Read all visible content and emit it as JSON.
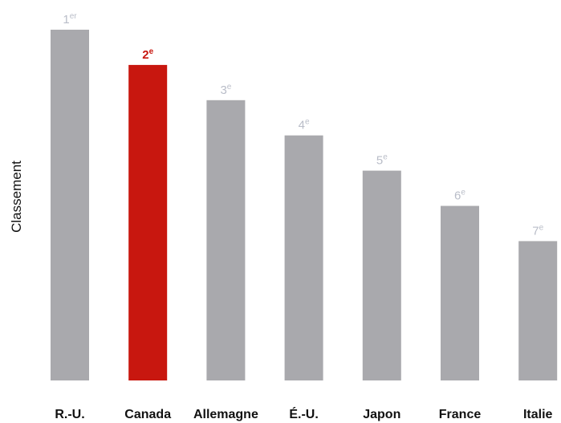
{
  "chart_data": {
    "type": "bar",
    "title": "",
    "xlabel": "",
    "ylabel": "Classement",
    "categories": [
      "R.-U.",
      "Canada",
      "Allemagne",
      "É.-U.",
      "Japon",
      "France",
      "Italie"
    ],
    "values": [
      1,
      2,
      3,
      4,
      5,
      6,
      7
    ],
    "data_labels": [
      {
        "base": "1",
        "suffix": "er"
      },
      {
        "base": "2",
        "suffix": "e"
      },
      {
        "base": "3",
        "suffix": "e"
      },
      {
        "base": "4",
        "suffix": "e"
      },
      {
        "base": "5",
        "suffix": "e"
      },
      {
        "base": "6",
        "suffix": "e"
      },
      {
        "base": "7",
        "suffix": "e"
      }
    ],
    "y_axis": "rank, 1 = highest bar, inverted",
    "highlight_category": "Canada",
    "grid": false,
    "legend": "none",
    "colors": {
      "bar": "#a9a9ad",
      "highlight": "#c8170f",
      "data_label": "#b9bdc8",
      "highlight_label": "#c8170f",
      "text": "#111111"
    }
  }
}
